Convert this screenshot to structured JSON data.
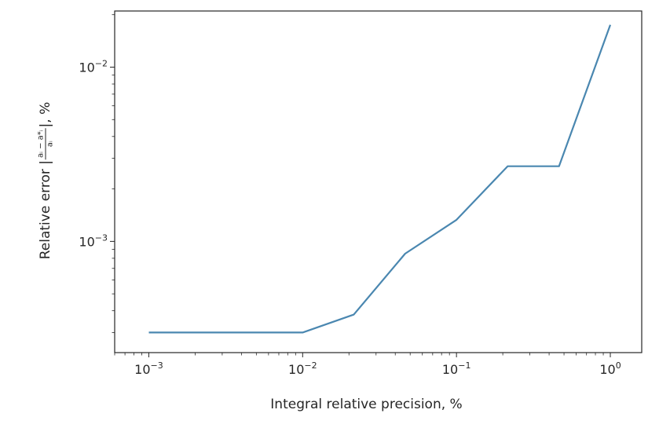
{
  "chart_data": {
    "type": "line",
    "xscale": "log",
    "yscale": "log",
    "xlabel": "Integral relative precision, %",
    "ylabel_prefix": "Relative error |",
    "ylabel_fraction_numerator": "aᵢ − a*ᵢ",
    "ylabel_fraction_denominator": "aᵢ",
    "ylabel_suffix": "|, %",
    "xlim": [
      0.0006,
      1.6
    ],
    "ylim": [
      0.00023,
      0.021
    ],
    "xticks": [
      {
        "value": 0.001,
        "base": "10",
        "exp": "−3"
      },
      {
        "value": 0.01,
        "base": "10",
        "exp": "−2"
      },
      {
        "value": 0.1,
        "base": "10",
        "exp": "−1"
      },
      {
        "value": 1,
        "base": "10",
        "exp": "0"
      }
    ],
    "yticks": [
      {
        "value": 0.001,
        "base": "10",
        "exp": "−3"
      },
      {
        "value": 0.01,
        "base": "10",
        "exp": "−2"
      }
    ],
    "series": [
      {
        "color": "#4a87b0",
        "x": [
          0.001,
          0.01,
          0.0215,
          0.0464,
          0.1,
          0.215,
          0.464,
          1.0
        ],
        "y": [
          0.0003,
          0.0003,
          0.00038,
          0.00085,
          0.00133,
          0.0027,
          0.0027,
          0.0175
        ]
      }
    ],
    "grid": false
  }
}
